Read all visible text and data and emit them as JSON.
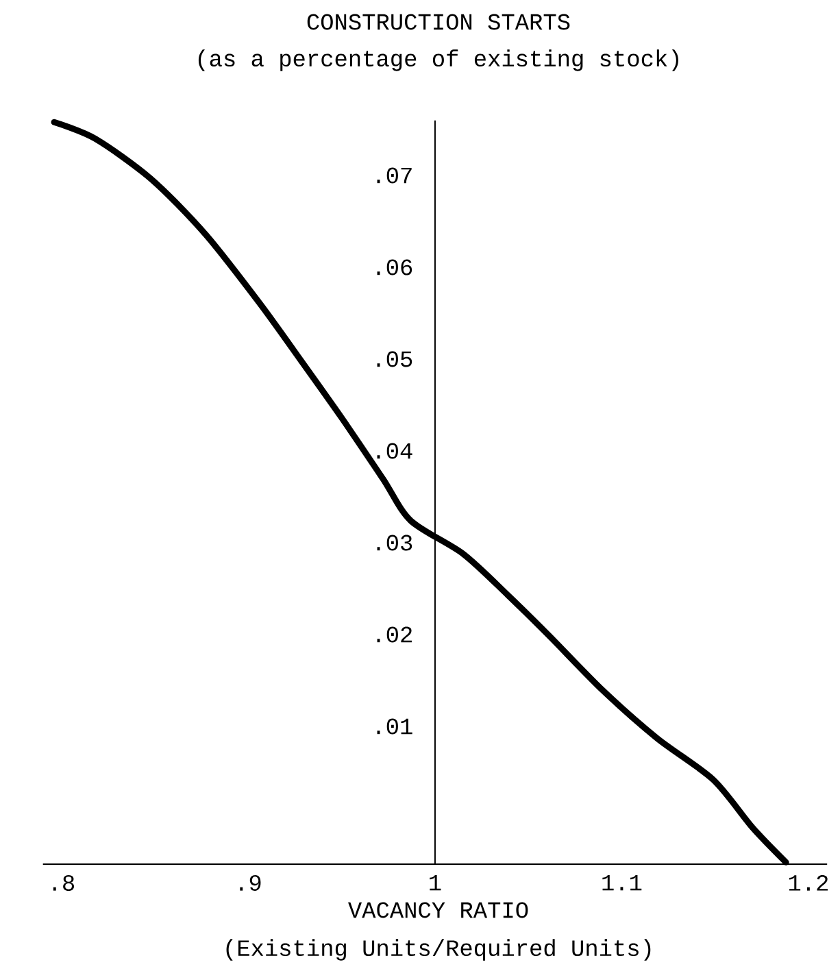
{
  "chart_data": {
    "type": "line",
    "title": "CONSTRUCTION STARTS",
    "subtitle": "(as a percentage of existing stock)",
    "xlabel": "VACANCY RATIO",
    "annotations": [
      "(Existing Units/Required Units)"
    ],
    "xlim": [
      0.79,
      1.21
    ],
    "ylim": [
      -0.005,
      0.076
    ],
    "xticks": [
      {
        "value": 0.8,
        "label": ".8"
      },
      {
        "value": 0.9,
        "label": ".9"
      },
      1,
      1.1,
      1.2
    ],
    "yticks": [
      {
        "value": 0.01,
        "label": ".01"
      },
      {
        "value": 0.02,
        "label": ".02"
      },
      {
        "value": 0.03,
        "label": ".03"
      },
      {
        "value": 0.04,
        "label": ".04"
      },
      {
        "value": 0.05,
        "label": ".05"
      },
      {
        "value": 0.06,
        "label": ".06"
      },
      {
        "value": 0.07,
        "label": ".07"
      }
    ],
    "x": [
      0.796,
      0.818,
      0.848,
      0.877,
      0.906,
      0.928,
      0.95,
      0.972,
      0.987,
      1.015,
      1.039,
      1.061,
      1.09,
      1.119,
      1.149,
      1.17,
      1.188
    ],
    "values": [
      0.0758,
      0.074,
      0.0696,
      0.0636,
      0.0561,
      0.0499,
      0.0436,
      0.037,
      0.0324,
      0.0288,
      0.0243,
      0.0199,
      0.0139,
      0.0087,
      0.0042,
      -0.001,
      -0.0048
    ],
    "color": "#000000"
  }
}
